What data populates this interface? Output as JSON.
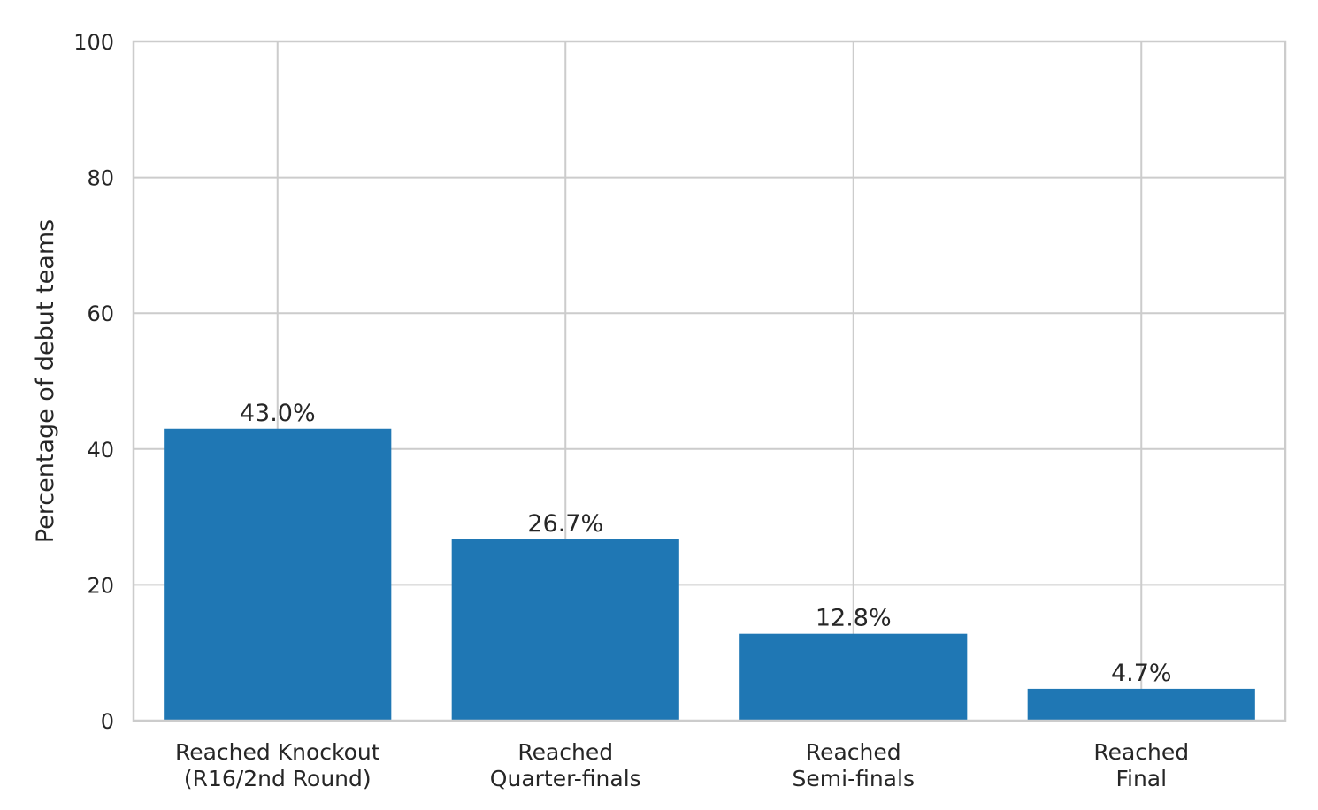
{
  "chart_data": {
    "type": "bar",
    "title": "",
    "xlabel": "",
    "ylabel": "Percentage of debut teams",
    "categories": [
      [
        "Reached Knockout",
        "(R16/2nd Round)"
      ],
      [
        "Reached",
        "Quarter-finals"
      ],
      [
        "Reached",
        "Semi-finals"
      ],
      [
        "Reached",
        "Final"
      ]
    ],
    "values": [
      43.0,
      26.7,
      12.8,
      4.7
    ],
    "value_labels": [
      "43.0%",
      "26.7%",
      "12.8%",
      "4.7%"
    ],
    "ylim": [
      0,
      100
    ],
    "yticks": [
      0,
      20,
      40,
      60,
      80,
      100
    ],
    "ytick_labels": [
      "0",
      "20",
      "40",
      "60",
      "80",
      "100"
    ],
    "grid": true,
    "bar_color": "#1f77b4",
    "grid_color": "#cccccc",
    "text_color": "#262626"
  }
}
